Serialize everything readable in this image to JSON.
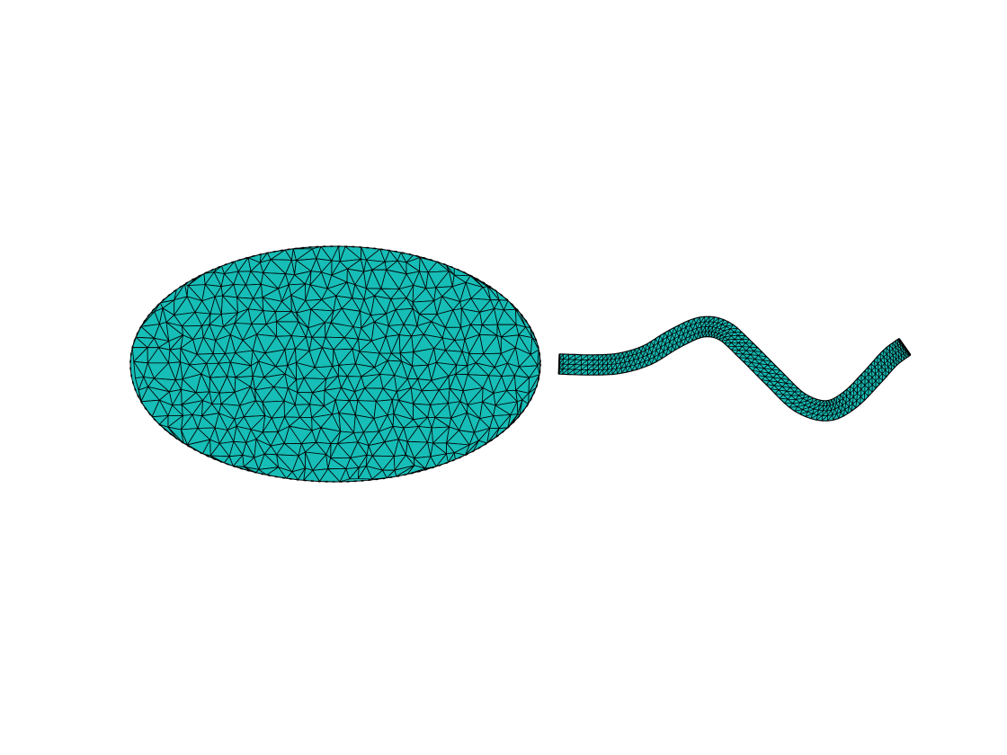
{
  "figure": {
    "background_color": "#ffffff",
    "surface_color": "#17bdb7",
    "edge_color": "#000000",
    "objects": [
      {
        "kind": "ellipsoid-body",
        "mesh": "triangulated"
      },
      {
        "kind": "helical-flagellum",
        "mesh": "triangulated"
      }
    ]
  }
}
